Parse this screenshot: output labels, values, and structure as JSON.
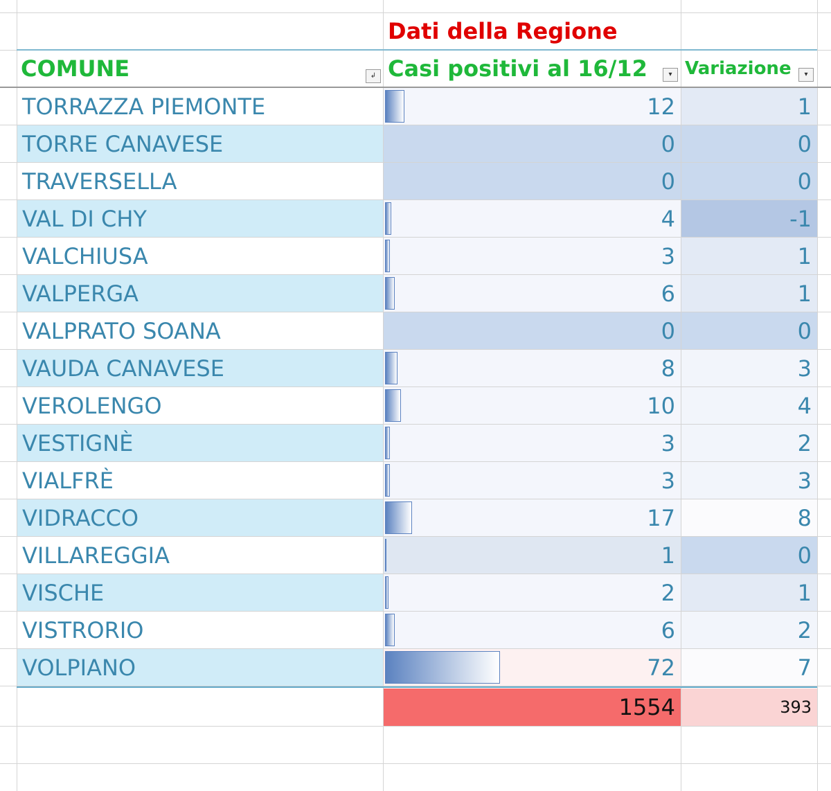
{
  "header": {
    "group": "Dati della Regione",
    "columns": [
      "COMUNE",
      "Casi positivi al 16/12",
      "Variazione"
    ]
  },
  "table": {
    "rows": [
      [
        "TORRAZZA PIEMONTE",
        12,
        1
      ],
      [
        "TORRE CANAVESE",
        0,
        0
      ],
      [
        "TRAVERSELLA",
        0,
        0
      ],
      [
        "VAL DI CHY",
        4,
        -1
      ],
      [
        "VALCHIUSA",
        3,
        1
      ],
      [
        "VALPERGA",
        6,
        1
      ],
      [
        "VALPRATO SOANA",
        0,
        0
      ],
      [
        "VAUDA CANAVESE",
        8,
        3
      ],
      [
        "VEROLENGO",
        10,
        4
      ],
      [
        "VESTIGNÈ",
        3,
        2
      ],
      [
        "VIALFRÈ",
        3,
        3
      ],
      [
        "VIDRACCO",
        17,
        8
      ],
      [
        "VILLAREGGIA",
        1,
        0
      ],
      [
        "VISCHE",
        2,
        1
      ],
      [
        "VISTRORIO",
        6,
        2
      ],
      [
        "VOLPIANO",
        72,
        7
      ]
    ],
    "totals": [
      1554,
      393
    ]
  }
}
